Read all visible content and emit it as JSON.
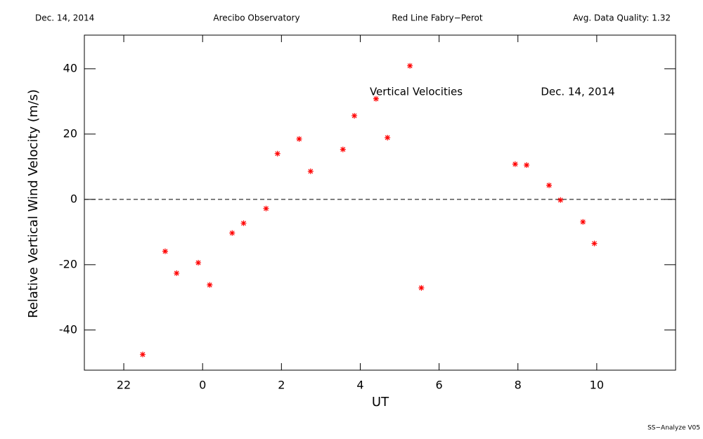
{
  "header": {
    "date": "Dec. 14, 2014",
    "site": "Arecibo Observatory",
    "instrument": "Red Line Fabry−Perot",
    "quality": "Avg. Data Quality: 1.32"
  },
  "footer": "SS−Analyze V05",
  "chart_data": {
    "type": "scatter",
    "annotations": [
      "Vertical Velocities",
      "Dec. 14, 2014"
    ],
    "x_label": "UT",
    "y_label": "Relative Vertical Wind Velocity (m/s)",
    "xlim": [
      -3,
      12
    ],
    "ylim": [
      -52.3,
      50.3
    ],
    "xticks": [
      {
        "value": -2,
        "label": "22"
      },
      0,
      2,
      4,
      6,
      8,
      10
    ],
    "yticks": [
      -40,
      -20,
      0,
      20,
      40
    ],
    "reference_line": 0,
    "color": "#ff0000",
    "x": [
      -1.52,
      -0.95,
      -0.66,
      -0.11,
      0.18,
      0.75,
      1.04,
      1.61,
      1.9,
      2.45,
      2.74,
      3.56,
      3.85,
      4.4,
      4.69,
      5.26,
      5.55,
      7.93,
      8.22,
      8.79,
      9.08,
      9.65,
      9.94
    ],
    "values": [
      -47.5,
      -15.9,
      -22.6,
      -19.4,
      -26.2,
      -10.3,
      -7.3,
      -2.8,
      14.0,
      18.5,
      8.6,
      15.3,
      25.6,
      30.8,
      18.9,
      40.9,
      -27.1,
      10.8,
      10.5,
      4.3,
      -0.2,
      -6.9,
      -13.5
    ]
  }
}
